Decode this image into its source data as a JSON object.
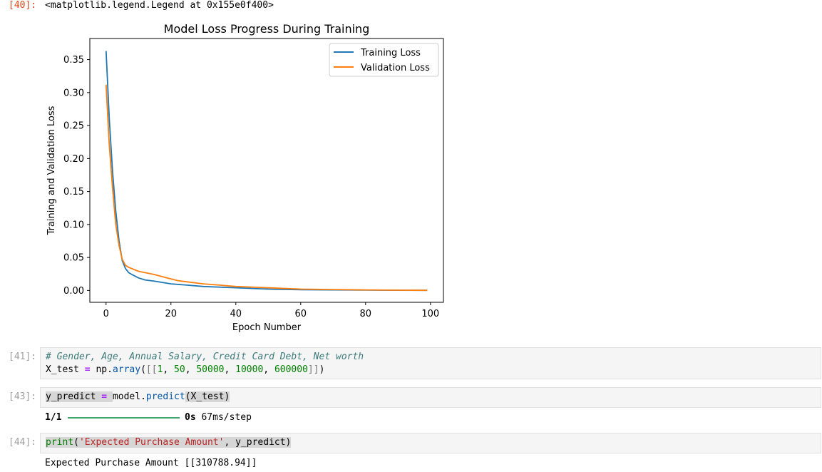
{
  "cell40": {
    "prompt": "[40]:",
    "output": "<matplotlib.legend.Legend at 0x155e0f400>"
  },
  "chart_data": {
    "type": "line",
    "title": "Model Loss Progress During Training",
    "xlabel": "Epoch Number",
    "ylabel": "Training and Validation Loss",
    "xlim": [
      -5,
      104
    ],
    "ylim": [
      -0.018,
      0.382
    ],
    "xticks": [
      "0",
      "20",
      "40",
      "60",
      "80",
      "100"
    ],
    "xtick_values": [
      0,
      20,
      40,
      60,
      80,
      100
    ],
    "yticks": [
      "0.00",
      "0.05",
      "0.10",
      "0.15",
      "0.20",
      "0.25",
      "0.30",
      "0.35"
    ],
    "ytick_values": [
      0,
      0.05,
      0.1,
      0.15,
      0.2,
      0.25,
      0.3,
      0.35
    ],
    "grid": false,
    "legend": "top-right",
    "series": [
      {
        "name": "Training Loss",
        "color": "#1f77b4",
        "x": [
          0,
          1,
          2,
          3,
          4,
          5,
          6,
          7,
          8,
          10,
          12,
          15,
          20,
          25,
          30,
          40,
          50,
          60,
          70,
          80,
          90,
          99
        ],
        "y": [
          0.363,
          0.26,
          0.18,
          0.12,
          0.075,
          0.045,
          0.033,
          0.027,
          0.024,
          0.019,
          0.016,
          0.014,
          0.01,
          0.008,
          0.006,
          0.004,
          0.002,
          0.001,
          0.0008,
          0.0005,
          0.0003,
          0.0002
        ]
      },
      {
        "name": "Validation Loss",
        "color": "#ff7f0e",
        "x": [
          0,
          1,
          2,
          3,
          4,
          5,
          6,
          7,
          8,
          10,
          12,
          15,
          18,
          22,
          25,
          30,
          35,
          40,
          50,
          60,
          70,
          80,
          90,
          99
        ],
        "y": [
          0.312,
          0.22,
          0.155,
          0.1,
          0.068,
          0.047,
          0.038,
          0.035,
          0.033,
          0.029,
          0.027,
          0.024,
          0.02,
          0.015,
          0.013,
          0.01,
          0.008,
          0.006,
          0.004,
          0.002,
          0.0013,
          0.0008,
          0.0004,
          0.0002
        ]
      }
    ]
  },
  "cell41": {
    "prompt": "[41]:",
    "comment": "# Gender, Age, Annual Salary, Credit Card Debt, Net worth",
    "code": {
      "var": "X_test",
      "eq": "=",
      "obj": "np",
      "dot": ".",
      "fn": "array",
      "open": "(",
      "bopen": "[[",
      "n1": "1",
      "sep1": ", ",
      "n2": "50",
      "sep2": ", ",
      "n3": "50000",
      "sep3": ", ",
      "n4": "10000",
      "sep4": ", ",
      "n5": "600000",
      "bclose": "]]",
      "close": ")"
    }
  },
  "cell43": {
    "prompt": "[43]:",
    "code": {
      "var": "y_predict",
      "eq": "=",
      "obj": "model",
      "dot": ".",
      "fn": "predict",
      "args": "(X_test)"
    },
    "progress": {
      "step": "1/1",
      "fraction": 1.0,
      "time": "0s",
      "rate": "67ms/step"
    }
  },
  "cell44": {
    "prompt": "[44]:",
    "code": {
      "fn": "print",
      "open": "(",
      "str": "'Expected Purchase Amount'",
      "rest": ", y_predict)"
    },
    "output": "Expected Purchase Amount [[310788.94]]"
  }
}
